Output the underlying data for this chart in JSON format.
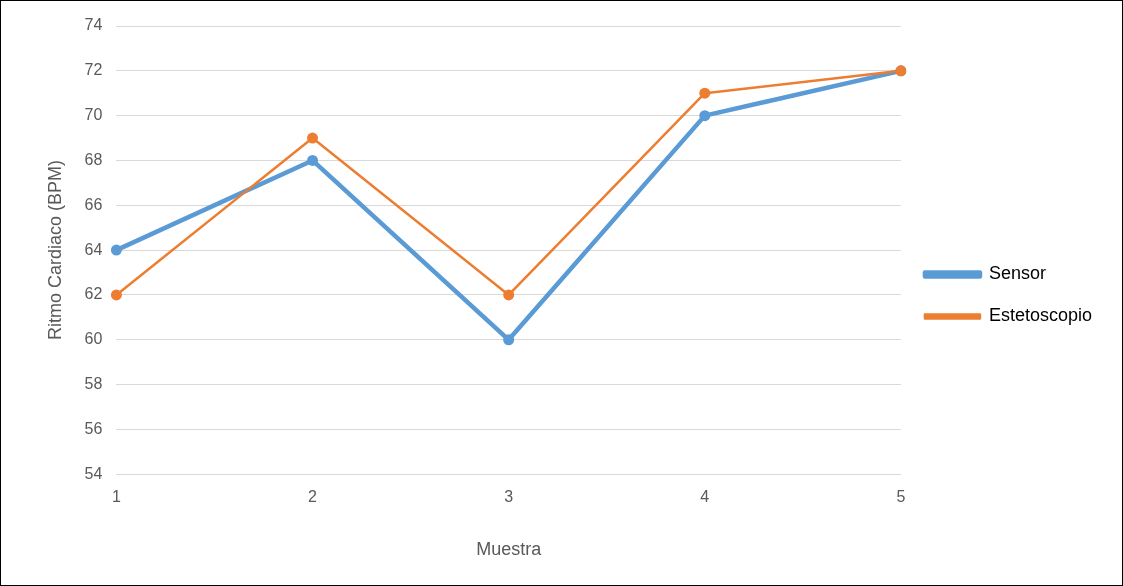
{
  "chart_data": {
    "type": "line",
    "xlabel": "Muestra",
    "ylabel": "Ritmo Cardiaco (BPM)",
    "categories": [
      "1",
      "2",
      "3",
      "4",
      "5"
    ],
    "series": [
      {
        "name": "Sensor",
        "color": "#5b9bd5",
        "values": [
          64,
          68,
          60,
          70,
          72
        ]
      },
      {
        "name": "Estetoscopio",
        "color": "#ed7d31",
        "values": [
          62,
          69,
          62,
          71,
          72
        ]
      }
    ],
    "ylim": [
      54,
      74
    ],
    "yticks": [
      54,
      56,
      58,
      60,
      62,
      64,
      66,
      68,
      70,
      72,
      74
    ],
    "grid": "y",
    "legend": "right",
    "marker": "circle",
    "line_style": "solid"
  }
}
